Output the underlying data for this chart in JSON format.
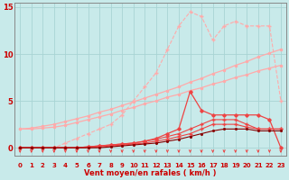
{
  "x": [
    0,
    1,
    2,
    3,
    4,
    5,
    6,
    7,
    8,
    9,
    10,
    11,
    12,
    13,
    14,
    15,
    16,
    17,
    18,
    19,
    20,
    21,
    22,
    23
  ],
  "line_straight1": [
    2.0,
    2.0,
    2.1,
    2.2,
    2.4,
    2.7,
    3.0,
    3.3,
    3.6,
    4.0,
    4.3,
    4.7,
    5.0,
    5.4,
    5.7,
    6.1,
    6.4,
    6.8,
    7.1,
    7.5,
    7.8,
    8.2,
    8.5,
    8.8
  ],
  "line_straight2": [
    2.0,
    2.1,
    2.3,
    2.5,
    2.8,
    3.1,
    3.4,
    3.8,
    4.1,
    4.5,
    4.9,
    5.3,
    5.7,
    6.1,
    6.5,
    7.0,
    7.4,
    7.9,
    8.3,
    8.8,
    9.2,
    9.7,
    10.1,
    10.5
  ],
  "line_dotted": [
    0.0,
    0.0,
    0.0,
    0.0,
    0.5,
    1.0,
    1.5,
    2.0,
    2.5,
    3.5,
    5.0,
    6.5,
    8.0,
    10.5,
    13.0,
    14.5,
    14.0,
    11.5,
    13.0,
    13.5,
    13.0,
    13.0,
    13.0,
    5.0
  ],
  "line_red1": [
    0.0,
    0.0,
    0.0,
    0.0,
    0.0,
    0.0,
    0.1,
    0.2,
    0.3,
    0.4,
    0.5,
    0.7,
    1.0,
    1.5,
    2.0,
    6.0,
    4.0,
    3.5,
    3.5,
    3.5,
    3.5,
    3.5,
    3.0,
    0.0
  ],
  "line_red2": [
    0.0,
    0.0,
    0.0,
    0.0,
    0.0,
    0.0,
    0.1,
    0.2,
    0.3,
    0.4,
    0.5,
    0.7,
    0.9,
    1.2,
    1.5,
    2.0,
    2.5,
    3.0,
    3.0,
    3.0,
    2.5,
    2.0,
    2.0,
    2.0
  ],
  "line_red3": [
    0.0,
    0.0,
    0.0,
    0.0,
    0.0,
    0.0,
    0.0,
    0.1,
    0.2,
    0.3,
    0.4,
    0.5,
    0.7,
    0.9,
    1.2,
    1.5,
    2.0,
    2.5,
    2.5,
    2.5,
    2.2,
    2.0,
    2.0,
    2.0
  ],
  "line_dark": [
    0.0,
    0.0,
    0.0,
    0.0,
    0.0,
    0.0,
    0.0,
    0.0,
    0.1,
    0.2,
    0.3,
    0.4,
    0.5,
    0.7,
    0.9,
    1.2,
    1.5,
    1.8,
    2.0,
    2.0,
    2.0,
    1.8,
    1.8,
    1.8
  ],
  "bg_color": "#c8eaea",
  "grid_color": "#a8d4d4",
  "color_light": "#ffaaaa",
  "color_mid": "#ee4444",
  "color_dark": "#880000",
  "xlabel": "Vent moyen/en rafales ( km/h )",
  "xlim": [
    -0.5,
    23.5
  ],
  "ylim": [
    -0.8,
    15.5
  ],
  "yticks": [
    0,
    5,
    10,
    15
  ],
  "xticks": [
    0,
    1,
    2,
    3,
    4,
    5,
    6,
    7,
    8,
    9,
    10,
    11,
    12,
    13,
    14,
    15,
    16,
    17,
    18,
    19,
    20,
    21,
    22,
    23
  ]
}
